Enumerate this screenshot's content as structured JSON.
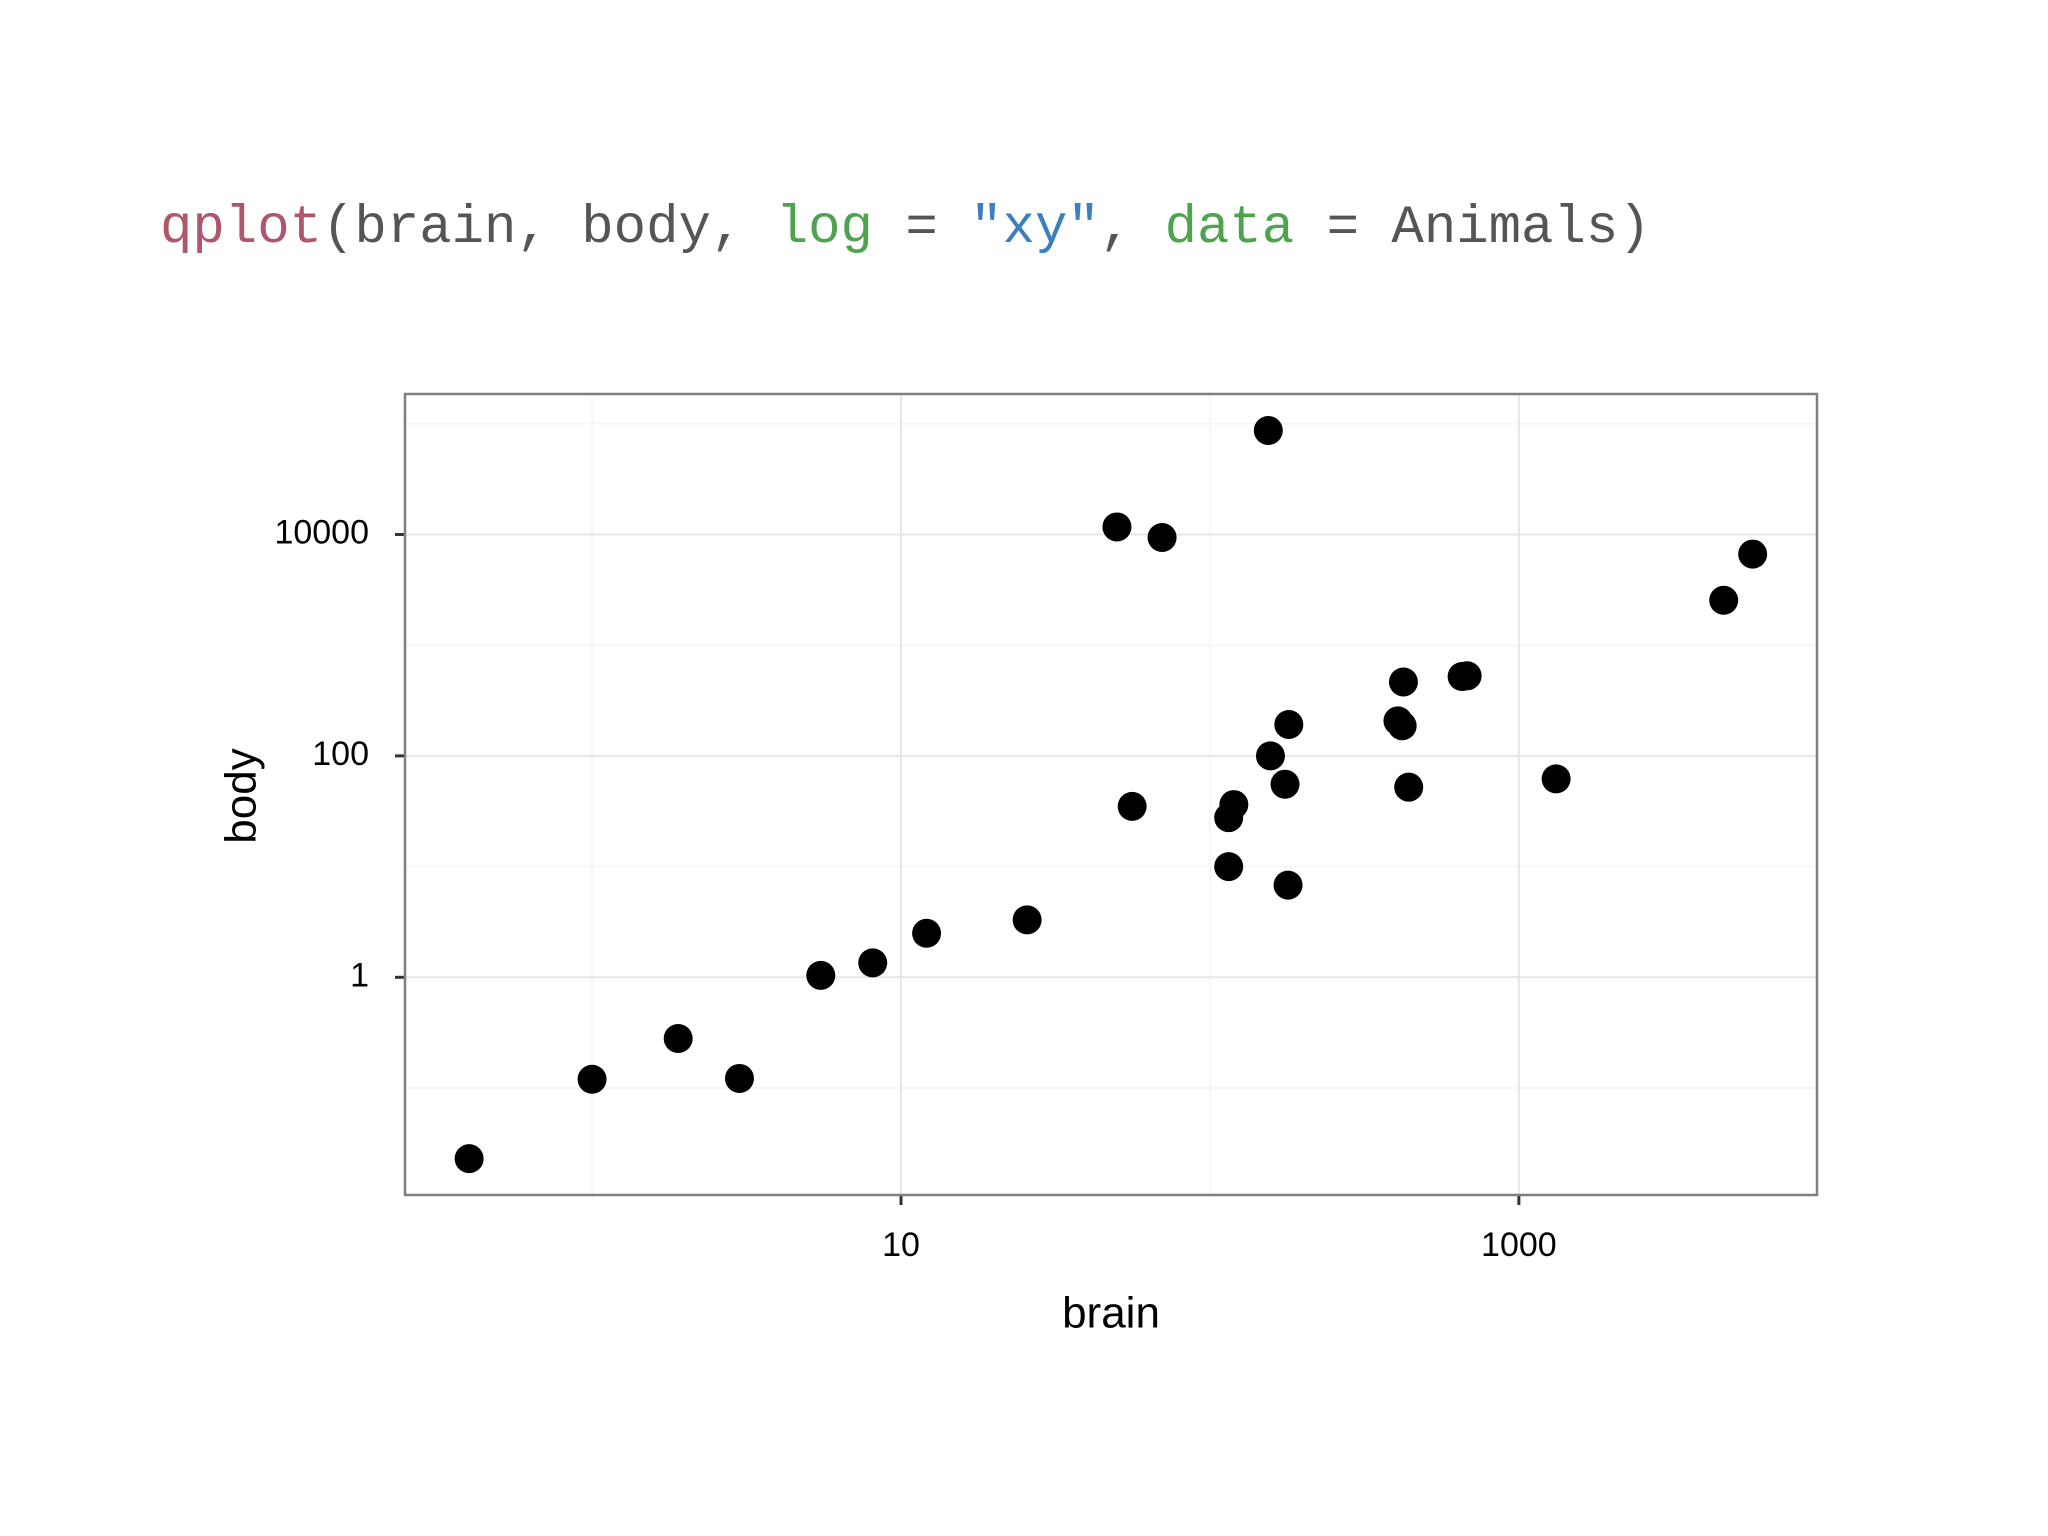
{
  "code": [
    {
      "text": "qplot",
      "color": "#b0566a"
    },
    {
      "text": "(brain, body, ",
      "color": "#555555"
    },
    {
      "text": "log",
      "color": "#4fa34f"
    },
    {
      "text": " = ",
      "color": "#555555"
    },
    {
      "text": "\"xy\"",
      "color": "#3a7fc0"
    },
    {
      "text": ", ",
      "color": "#555555"
    },
    {
      "text": "data",
      "color": "#4fa34f"
    },
    {
      "text": " = Animals)",
      "color": "#555555"
    }
  ],
  "chart_data": {
    "type": "scatter",
    "x_label": "brain",
    "y_label": "body",
    "xlog": true,
    "ylog": true,
    "grid": true,
    "color": "#000000",
    "x": [
      8.1,
      423,
      119.5,
      115,
      5.5,
      50,
      4603,
      419,
      655,
      115,
      25.6,
      680,
      406,
      1320,
      5712,
      70,
      179,
      56,
      1,
      0.4,
      12.1,
      175,
      157,
      440,
      1.9,
      154.5,
      3,
      180
    ],
    "values": [
      1.35,
      465,
      36.33,
      27.66,
      1.04,
      11700,
      2547,
      187.1,
      521,
      10,
      3.3,
      529,
      207,
      62,
      6654,
      9400,
      6.8,
      35,
      0.12,
      0.023,
      2.5,
      55.5,
      100,
      52.16,
      0.28,
      87000,
      0.122,
      192
    ],
    "xlim": [
      0.248,
      9226
    ],
    "ylim": [
      0.0108,
      185800
    ],
    "xticks": [
      10,
      1000
    ],
    "yticks": [
      1,
      100,
      10000
    ],
    "xminor": [
      1,
      100
    ],
    "yminor": [
      0.1,
      10,
      1000,
      100000
    ]
  }
}
